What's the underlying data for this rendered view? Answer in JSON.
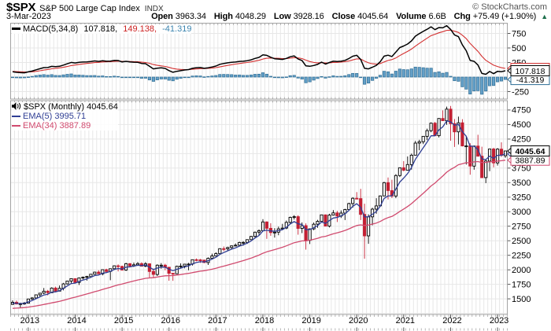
{
  "header": {
    "symbol": "$SPX",
    "name": "S&P 500 Large Cap Index",
    "exchange": "INDX",
    "copyright": "© StockCharts.com",
    "date": "3-Mar-2023",
    "quote": {
      "open_label": "Open",
      "open": "3963.34",
      "high_label": "High",
      "high": "4048.29",
      "low_label": "Low",
      "low": "3928.16",
      "close_label": "Close",
      "close": "4045.64",
      "volume_label": "Volume",
      "volume": "6.6B",
      "chg_label": "Chg",
      "chg": "+75.49 (+1.90%)",
      "arrow": "▲",
      "direction": "up"
    }
  },
  "macd_panel": {
    "label": "MACD(5,34,8)",
    "macd_value": "107.818,",
    "signal_value": "149.138,",
    "hist_value": "-41.319",
    "y_tick_labels": [
      750,
      500,
      250,
      -250
    ],
    "axis_boxes": [
      {
        "value": 149.138,
        "text": "149.138",
        "color_key": "signal",
        "bold": false
      },
      {
        "value": -41.319,
        "text": "-41.319",
        "color_key": "histStroke",
        "bold": false
      },
      {
        "value": 107.818,
        "text": "107.818",
        "color_key": "black",
        "bold": false
      }
    ]
  },
  "main_panel": {
    "title": "$SPX (Monthly) 4045.64",
    "ema5_label": "EMA(5) 3995.71",
    "ema34_label": "EMA(34) 3887.89",
    "y_tick_labels": [
      4750,
      4500,
      4250,
      3750,
      3500,
      3250,
      3000,
      2750,
      2500,
      2250,
      2000,
      1750,
      1500
    ],
    "axis_boxes": [
      {
        "value": 3995.71,
        "text": "3995.71",
        "color_key": "ema5",
        "bold": false
      },
      {
        "value": 3887.89,
        "text": "3887.89",
        "color_key": "ema34",
        "bold": false
      },
      {
        "value": 4045.64,
        "text": "4045.64",
        "color_key": "black",
        "bold": true
      }
    ]
  },
  "x_axis": {
    "years": [
      "2013",
      "2014",
      "2015",
      "2016",
      "2017",
      "2018",
      "2019",
      "2020",
      "2021",
      "2022",
      "2023"
    ]
  },
  "colors": {
    "black": "#000000",
    "down": "#c41f33",
    "upFill": "#ffffff",
    "ema5": "#2f3e94",
    "ema34": "#d04a6e",
    "signal": "#d32f2f",
    "histFill": "#64a0c8",
    "histStroke": "#2e6e96",
    "grid": "#e7e7e7",
    "border": "#a3a3a3",
    "upGreen": "#1d6f4c"
  },
  "chart_data": {
    "type": "candlestick",
    "symbol": "$SPX",
    "timeframe": "Monthly",
    "title": "$SPX (Monthly) 4045.64",
    "overlays": [
      {
        "name": "EMA(5)",
        "value": 3995.71
      },
      {
        "name": "EMA(34)",
        "value": 3887.89
      }
    ],
    "indicator": {
      "name": "MACD(5,34,8)",
      "macd": 107.818,
      "signal": 149.138,
      "histogram": -41.319
    },
    "main_ylim": [
      1230,
      4900
    ],
    "macd_ylim": [
      -392,
      932
    ],
    "y_grid_step": 250,
    "legend_position": "top-left",
    "grid": true,
    "ema_seeds": {
      "ema5": 1420,
      "ema34": 1330,
      "signal": 100
    },
    "columns": [
      "month",
      "open",
      "high",
      "low",
      "close"
    ],
    "ohlc_monthly": [
      [
        "Sep-2012",
        1406,
        1475,
        1397,
        1441
      ],
      [
        "Oct-2012",
        1441,
        1471,
        1403,
        1412
      ],
      [
        "Nov-2012",
        1412,
        1434,
        1343,
        1416
      ],
      [
        "Dec-2012",
        1416,
        1448,
        1398,
        1426
      ],
      [
        "Jan-2013",
        1426,
        1503,
        1426,
        1498
      ],
      [
        "Feb-2013",
        1498,
        1531,
        1485,
        1515
      ],
      [
        "Mar-2013",
        1515,
        1571,
        1501,
        1569
      ],
      [
        "Apr-2013",
        1569,
        1598,
        1536,
        1598
      ],
      [
        "May-2013",
        1598,
        1687,
        1581,
        1631
      ],
      [
        "Jun-2013",
        1631,
        1654,
        1560,
        1606
      ],
      [
        "Jul-2013",
        1606,
        1699,
        1604,
        1686
      ],
      [
        "Aug-2013",
        1686,
        1710,
        1627,
        1633
      ],
      [
        "Sep-2013",
        1633,
        1730,
        1633,
        1682
      ],
      [
        "Oct-2013",
        1682,
        1775,
        1646,
        1757
      ],
      [
        "Nov-2013",
        1757,
        1813,
        1746,
        1806
      ],
      [
        "Dec-2013",
        1806,
        1849,
        1768,
        1848
      ],
      [
        "Jan-2014",
        1848,
        1851,
        1770,
        1783
      ],
      [
        "Feb-2014",
        1783,
        1868,
        1738,
        1859
      ],
      [
        "Mar-2014",
        1859,
        1884,
        1834,
        1872
      ],
      [
        "Apr-2014",
        1872,
        1897,
        1814,
        1884
      ],
      [
        "May-2014",
        1884,
        1924,
        1860,
        1924
      ],
      [
        "Jun-2014",
        1924,
        1968,
        1916,
        1960
      ],
      [
        "Jul-2014",
        1960,
        1991,
        1930,
        1931
      ],
      [
        "Aug-2014",
        1931,
        2005,
        1905,
        2003
      ],
      [
        "Sep-2014",
        2003,
        2019,
        1964,
        1972
      ],
      [
        "Oct-2014",
        1972,
        2018,
        1821,
        2018
      ],
      [
        "Nov-2014",
        2018,
        2076,
        2001,
        2068
      ],
      [
        "Dec-2014",
        2068,
        2093,
        1972,
        2059
      ],
      [
        "Jan-2015",
        2059,
        2072,
        1988,
        1995
      ],
      [
        "Feb-2015",
        1995,
        2120,
        1981,
        2105
      ],
      [
        "Mar-2015",
        2105,
        2117,
        2040,
        2068
      ],
      [
        "Apr-2015",
        2068,
        2126,
        2048,
        2086
      ],
      [
        "May-2015",
        2086,
        2135,
        2068,
        2107
      ],
      [
        "Jun-2015",
        2107,
        2130,
        2056,
        2063
      ],
      [
        "Jul-2015",
        2063,
        2133,
        2044,
        2104
      ],
      [
        "Aug-2015",
        2104,
        2113,
        1867,
        1972
      ],
      [
        "Sep-2015",
        1972,
        2021,
        1872,
        1920
      ],
      [
        "Oct-2015",
        1920,
        2095,
        1894,
        2079
      ],
      [
        "Nov-2015",
        2079,
        2116,
        2019,
        2080
      ],
      [
        "Dec-2015",
        2080,
        2104,
        1993,
        2044
      ],
      [
        "Jan-2016",
        2044,
        2044,
        1812,
        1940
      ],
      [
        "Feb-2016",
        1940,
        1947,
        1810,
        1932
      ],
      [
        "Mar-2016",
        1932,
        2072,
        1931,
        2060
      ],
      [
        "Apr-2016",
        2060,
        2111,
        2033,
        2065
      ],
      [
        "May-2016",
        2065,
        2103,
        2025,
        2097
      ],
      [
        "Jun-2016",
        2097,
        2120,
        1991,
        2099
      ],
      [
        "Jul-2016",
        2099,
        2177,
        2074,
        2174
      ],
      [
        "Aug-2016",
        2174,
        2194,
        2147,
        2171
      ],
      [
        "Sep-2016",
        2171,
        2187,
        2119,
        2168
      ],
      [
        "Oct-2016",
        2168,
        2169,
        2114,
        2126
      ],
      [
        "Nov-2016",
        2126,
        2214,
        2084,
        2199
      ],
      [
        "Dec-2016",
        2199,
        2278,
        2187,
        2239
      ],
      [
        "Jan-2017",
        2239,
        2301,
        2234,
        2279
      ],
      [
        "Feb-2017",
        2279,
        2371,
        2271,
        2364
      ],
      [
        "Mar-2017",
        2364,
        2401,
        2322,
        2363
      ],
      [
        "Apr-2017",
        2363,
        2398,
        2329,
        2384
      ],
      [
        "May-2017",
        2384,
        2418,
        2352,
        2412
      ],
      [
        "Jun-2017",
        2412,
        2454,
        2405,
        2423
      ],
      [
        "Jul-2017",
        2423,
        2484,
        2407,
        2470
      ],
      [
        "Aug-2017",
        2470,
        2491,
        2417,
        2472
      ],
      [
        "Sep-2017",
        2472,
        2519,
        2446,
        2519
      ],
      [
        "Oct-2017",
        2519,
        2583,
        2517,
        2575
      ],
      [
        "Nov-2017",
        2575,
        2657,
        2557,
        2648
      ],
      [
        "Dec-2017",
        2648,
        2695,
        2605,
        2674
      ],
      [
        "Jan-2018",
        2674,
        2873,
        2674,
        2824
      ],
      [
        "Feb-2018",
        2824,
        2835,
        2533,
        2714
      ],
      [
        "Mar-2018",
        2714,
        2802,
        2586,
        2641
      ],
      [
        "Apr-2018",
        2641,
        2717,
        2554,
        2648
      ],
      [
        "May-2018",
        2648,
        2742,
        2595,
        2705
      ],
      [
        "Jun-2018",
        2705,
        2791,
        2692,
        2718
      ],
      [
        "Jul-2018",
        2718,
        2848,
        2699,
        2816
      ],
      [
        "Aug-2018",
        2816,
        2916,
        2796,
        2902
      ],
      [
        "Sep-2018",
        2902,
        2941,
        2865,
        2914
      ],
      [
        "Oct-2018",
        2914,
        2940,
        2604,
        2712
      ],
      [
        "Nov-2018",
        2712,
        2815,
        2631,
        2760
      ],
      [
        "Dec-2018",
        2760,
        2800,
        2347,
        2507
      ],
      [
        "Jan-2019",
        2507,
        2709,
        2444,
        2704
      ],
      [
        "Feb-2019",
        2704,
        2814,
        2682,
        2784
      ],
      [
        "Mar-2019",
        2784,
        2860,
        2722,
        2834
      ],
      [
        "Apr-2019",
        2834,
        2949,
        2834,
        2946
      ],
      [
        "May-2019",
        2946,
        2954,
        2751,
        2752
      ],
      [
        "Jun-2019",
        2752,
        2964,
        2729,
        2942
      ],
      [
        "Jul-2019",
        2942,
        3028,
        2934,
        2980
      ],
      [
        "Aug-2019",
        2980,
        3014,
        2822,
        2926
      ],
      [
        "Sep-2019",
        2926,
        3022,
        2892,
        2977
      ],
      [
        "Oct-2019",
        2977,
        3050,
        2856,
        3038
      ],
      [
        "Nov-2019",
        3038,
        3154,
        3024,
        3141
      ],
      [
        "Dec-2019",
        3141,
        3248,
        3070,
        3231
      ],
      [
        "Jan-2020",
        3231,
        3338,
        3214,
        3226
      ],
      [
        "Feb-2020",
        3226,
        3394,
        2856,
        2954
      ],
      [
        "Mar-2020",
        2954,
        3137,
        2192,
        2585
      ],
      [
        "Apr-2020",
        2585,
        2955,
        2448,
        2912
      ],
      [
        "May-2020",
        2912,
        3068,
        2766,
        3044
      ],
      [
        "Jun-2020",
        3044,
        3233,
        2966,
        3100
      ],
      [
        "Jul-2020",
        3100,
        3280,
        3086,
        3271
      ],
      [
        "Aug-2020",
        3271,
        3514,
        3271,
        3500
      ],
      [
        "Sep-2020",
        3500,
        3588,
        3209,
        3363
      ],
      [
        "Oct-2020",
        3363,
        3550,
        3234,
        3270
      ],
      [
        "Nov-2020",
        3270,
        3646,
        3233,
        3622
      ],
      [
        "Dec-2020",
        3622,
        3760,
        3596,
        3756
      ],
      [
        "Jan-2021",
        3756,
        3871,
        3695,
        3714
      ],
      [
        "Feb-2021",
        3714,
        3951,
        3714,
        3811
      ],
      [
        "Mar-2021",
        3811,
        4000,
        3724,
        3973
      ],
      [
        "Apr-2021",
        3973,
        4219,
        3973,
        4181
      ],
      [
        "May-2021",
        4181,
        4238,
        4057,
        4204
      ],
      [
        "Jun-2021",
        4204,
        4302,
        4164,
        4298
      ],
      [
        "Jul-2021",
        4298,
        4430,
        4233,
        4395
      ],
      [
        "Aug-2021",
        4395,
        4537,
        4368,
        4523
      ],
      [
        "Sep-2021",
        4523,
        4546,
        4306,
        4308
      ],
      [
        "Oct-2021",
        4308,
        4608,
        4279,
        4605
      ],
      [
        "Nov-2021",
        4605,
        4744,
        4560,
        4567
      ],
      [
        "Dec-2021",
        4567,
        4809,
        4495,
        4766
      ],
      [
        "Jan-2022",
        4766,
        4819,
        4222,
        4516
      ],
      [
        "Feb-2022",
        4516,
        4595,
        4115,
        4374
      ],
      [
        "Mar-2022",
        4374,
        4637,
        4158,
        4530
      ],
      [
        "Apr-2022",
        4530,
        4593,
        4124,
        4132
      ],
      [
        "May-2022",
        4132,
        4308,
        3811,
        4132
      ],
      [
        "Jun-2022",
        4132,
        4178,
        3637,
        3785
      ],
      [
        "Jul-2022",
        3785,
        4140,
        3722,
        4130
      ],
      [
        "Aug-2022",
        4130,
        4325,
        3954,
        3955
      ],
      [
        "Sep-2022",
        3955,
        4119,
        3584,
        3586
      ],
      [
        "Oct-2022",
        3586,
        3906,
        3492,
        3872
      ],
      [
        "Nov-2022",
        3872,
        4080,
        3698,
        4080
      ],
      [
        "Dec-2022",
        4080,
        4101,
        3764,
        3840
      ],
      [
        "Jan-2023",
        3840,
        4094,
        3794,
        4077
      ],
      [
        "Feb-2023",
        4077,
        4195,
        3943,
        3970
      ],
      [
        "Mar-2023",
        3963.34,
        4048.29,
        3928.16,
        4045.64
      ]
    ]
  }
}
